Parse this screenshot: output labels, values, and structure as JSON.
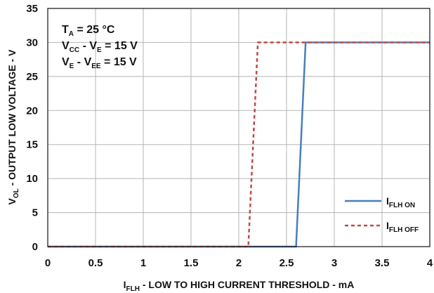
{
  "chart_data": {
    "type": "line",
    "xlabel": {
      "main": "I",
      "sub": "FLH",
      "rest": " - LOW TO HIGH CURRENT THRESHOLD - mA"
    },
    "ylabel": {
      "main": "V",
      "sub": "OL",
      "rest": " - OUTPUT LOW VOLTAGE - V"
    },
    "xlim": [
      0,
      4
    ],
    "ylim": [
      0,
      35
    ],
    "x_ticks": [
      "0",
      "0.5",
      "1",
      "1.5",
      "2",
      "2.5",
      "3",
      "3.5",
      "4"
    ],
    "y_ticks": [
      "0",
      "5",
      "10",
      "15",
      "20",
      "25",
      "30",
      "35"
    ],
    "grid": true,
    "legend_position": "bottom-right",
    "annotations": [
      {
        "main": "T",
        "sub": "A",
        "rest": " = 25 °C"
      },
      {
        "main": "V",
        "sub": "CC",
        "rest": " - V",
        "sub2": "E",
        "rest2": " = 15 V"
      },
      {
        "main": "V",
        "sub": "E",
        "rest": " - V",
        "sub2": "EE",
        "rest2": " = 15 V"
      }
    ],
    "series": [
      {
        "name": {
          "main": "I",
          "sub": "FLH ON"
        },
        "color": "#4a7ebb",
        "style": "solid",
        "x": [
          0,
          2.6,
          2.7,
          4
        ],
        "y": [
          0,
          0,
          30,
          30
        ]
      },
      {
        "name": {
          "main": "I",
          "sub": "FLH OFF"
        },
        "color": "#be4b48",
        "style": "dashed",
        "x": [
          0,
          2.1,
          2.2,
          4
        ],
        "y": [
          0,
          0,
          30,
          30
        ]
      }
    ]
  }
}
